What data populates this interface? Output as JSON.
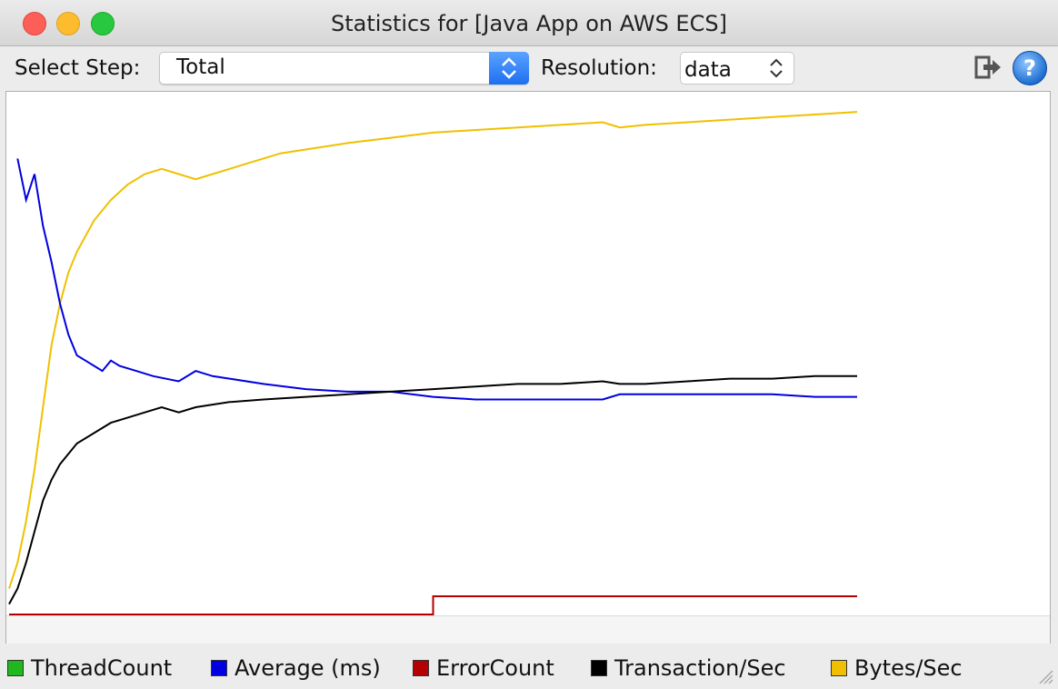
{
  "window": {
    "title": "Statistics for [Java App on AWS ECS]"
  },
  "toolbar": {
    "select_step_label": "Select Step:",
    "select_step_value": "Total",
    "resolution_label": "Resolution:",
    "resolution_value": "data",
    "export_icon": "export-icon",
    "help_icon": "help-icon"
  },
  "colors": {
    "thread_count": "#1fb81f",
    "average": "#0000e0",
    "error_count": "#b40000",
    "transactions": "#000000",
    "bytes": "#f0c000"
  },
  "legend": [
    {
      "label": "ThreadCount",
      "color": "#1fb81f"
    },
    {
      "label": "Average (ms)",
      "color": "#0000e0"
    },
    {
      "label": "ErrorCount",
      "color": "#b40000"
    },
    {
      "label": "Transaction/Sec",
      "color": "#000000"
    },
    {
      "label": "Bytes/Sec",
      "color": "#f0c000"
    }
  ],
  "chart_data": {
    "type": "line",
    "x_range": [
      0,
      100
    ],
    "y_range": [
      0,
      100
    ],
    "grid": false,
    "legend_position": "bottom",
    "series": [
      {
        "name": "Bytes/Sec",
        "color": "#f0c000",
        "points": [
          [
            0,
            5
          ],
          [
            1,
            10
          ],
          [
            2,
            18
          ],
          [
            3,
            28
          ],
          [
            4,
            40
          ],
          [
            5,
            52
          ],
          [
            6,
            60
          ],
          [
            7,
            66
          ],
          [
            8,
            70
          ],
          [
            10,
            76
          ],
          [
            12,
            80
          ],
          [
            14,
            83
          ],
          [
            16,
            85
          ],
          [
            18,
            86
          ],
          [
            20,
            85
          ],
          [
            22,
            84
          ],
          [
            24,
            85
          ],
          [
            26,
            86
          ],
          [
            28,
            87
          ],
          [
            32,
            89
          ],
          [
            36,
            90
          ],
          [
            40,
            91
          ],
          [
            45,
            92
          ],
          [
            50,
            93
          ],
          [
            55,
            93.5
          ],
          [
            60,
            94
          ],
          [
            65,
            94.5
          ],
          [
            70,
            95
          ],
          [
            72,
            94
          ],
          [
            75,
            94.5
          ],
          [
            80,
            95
          ],
          [
            85,
            95.5
          ],
          [
            90,
            96
          ],
          [
            95,
            96.5
          ],
          [
            100,
            97
          ]
        ]
      },
      {
        "name": "Average (ms)",
        "color": "#0000e0",
        "points": [
          [
            1,
            88
          ],
          [
            2,
            80
          ],
          [
            3,
            85
          ],
          [
            4,
            75
          ],
          [
            5,
            68
          ],
          [
            6,
            60
          ],
          [
            7,
            54
          ],
          [
            8,
            50
          ],
          [
            9,
            49
          ],
          [
            10,
            48
          ],
          [
            11,
            47
          ],
          [
            12,
            49
          ],
          [
            13,
            48
          ],
          [
            15,
            47
          ],
          [
            17,
            46
          ],
          [
            20,
            45
          ],
          [
            22,
            47
          ],
          [
            24,
            46
          ],
          [
            26,
            45.5
          ],
          [
            30,
            44.5
          ],
          [
            35,
            43.5
          ],
          [
            40,
            43
          ],
          [
            45,
            43
          ],
          [
            50,
            42
          ],
          [
            55,
            41.5
          ],
          [
            60,
            41.5
          ],
          [
            65,
            41.5
          ],
          [
            70,
            41.5
          ],
          [
            72,
            42.5
          ],
          [
            75,
            42.5
          ],
          [
            80,
            42.5
          ],
          [
            85,
            42.5
          ],
          [
            90,
            42.5
          ],
          [
            95,
            42
          ],
          [
            100,
            42
          ]
        ]
      },
      {
        "name": "Transaction/Sec",
        "color": "#000000",
        "points": [
          [
            0,
            2
          ],
          [
            1,
            5
          ],
          [
            2,
            10
          ],
          [
            3,
            16
          ],
          [
            4,
            22
          ],
          [
            5,
            26
          ],
          [
            6,
            29
          ],
          [
            8,
            33
          ],
          [
            10,
            35
          ],
          [
            12,
            37
          ],
          [
            14,
            38
          ],
          [
            16,
            39
          ],
          [
            18,
            40
          ],
          [
            20,
            39
          ],
          [
            22,
            40
          ],
          [
            24,
            40.5
          ],
          [
            26,
            41
          ],
          [
            30,
            41.5
          ],
          [
            35,
            42
          ],
          [
            40,
            42.5
          ],
          [
            45,
            43
          ],
          [
            50,
            43.5
          ],
          [
            55,
            44
          ],
          [
            60,
            44.5
          ],
          [
            65,
            44.5
          ],
          [
            70,
            45
          ],
          [
            72,
            44.5
          ],
          [
            75,
            44.5
          ],
          [
            80,
            45
          ],
          [
            85,
            45.5
          ],
          [
            90,
            45.5
          ],
          [
            95,
            46
          ],
          [
            100,
            46
          ]
        ]
      },
      {
        "name": "ErrorCount",
        "color": "#b40000",
        "points": [
          [
            0,
            0
          ],
          [
            50,
            0
          ],
          [
            50,
            3.5
          ],
          [
            100,
            3.5
          ]
        ]
      },
      {
        "name": "ThreadCount",
        "color": "#1fb81f",
        "points": []
      }
    ]
  }
}
